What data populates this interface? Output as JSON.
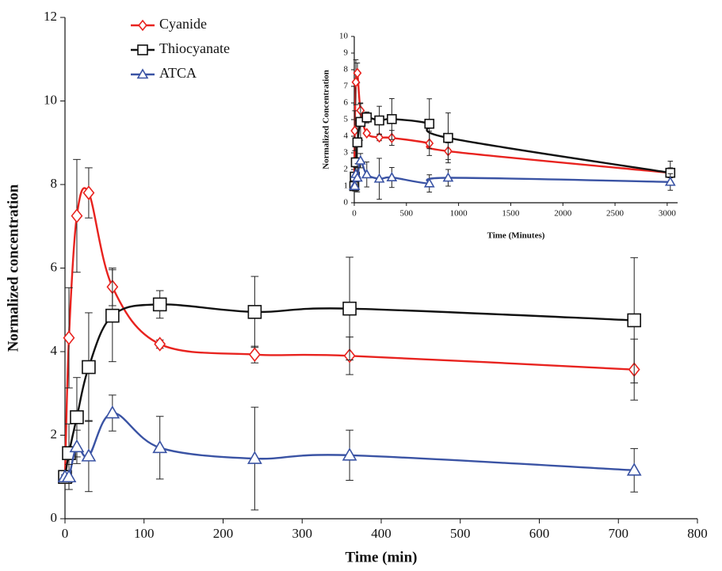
{
  "chart_data": [
    {
      "type": "line",
      "xlabel": "Time (min)",
      "ylabel": "Normalized concentration",
      "xlim": [
        0,
        800
      ],
      "xticks": [
        0,
        100,
        200,
        300,
        400,
        500,
        600,
        700,
        800
      ],
      "ylim": [
        0,
        12
      ],
      "yticks": [
        0,
        2,
        4,
        6,
        8,
        10,
        12
      ],
      "legend": "upper left",
      "x": [
        0,
        5,
        15,
        30,
        60,
        120,
        240,
        360,
        720
      ],
      "series": [
        {
          "name": "Cyanide",
          "color": "#e8231f",
          "marker": "diamond",
          "values": [
            1.0,
            4.33,
            7.25,
            7.8,
            5.55,
            4.18,
            3.93,
            3.9,
            3.57
          ],
          "errors": [
            0.05,
            1.2,
            1.35,
            0.6,
            0.45,
            0.1,
            0.2,
            0.45,
            0.73
          ]
        },
        {
          "name": "Thiocyanate",
          "color": "#111111",
          "marker": "square",
          "values": [
            1.0,
            1.57,
            2.43,
            3.63,
            4.86,
            5.13,
            4.95,
            5.03,
            4.75
          ],
          "errors": [
            0.05,
            0.7,
            0.95,
            1.3,
            1.1,
            0.33,
            0.85,
            1.23,
            1.5
          ]
        },
        {
          "name": "ATCA",
          "color": "#3a53a4",
          "marker": "triangle",
          "values": [
            1.0,
            1.0,
            1.72,
            1.5,
            2.53,
            1.7,
            1.44,
            1.52,
            1.16
          ],
          "errors": [
            0.05,
            0.3,
            0.4,
            0.85,
            0.43,
            0.75,
            1.23,
            0.6,
            0.52
          ]
        }
      ]
    },
    {
      "type": "line",
      "xlabel": "Time (Minutes)",
      "ylabel": "Normalized Concentration",
      "xlim": [
        0,
        3100
      ],
      "xticks": [
        0,
        500,
        1000,
        1500,
        2000,
        2500,
        3000
      ],
      "ylim": [
        0,
        10
      ],
      "yticks": [
        0,
        1,
        2,
        3,
        4,
        5,
        6,
        7,
        8,
        9,
        10
      ],
      "legend": false,
      "x": [
        0,
        5,
        15,
        30,
        60,
        120,
        240,
        360,
        720,
        900,
        3030
      ],
      "series": [
        {
          "name": "Cyanide",
          "color": "#e8231f",
          "marker": "diamond",
          "values": [
            1.0,
            4.33,
            7.25,
            7.8,
            5.55,
            4.18,
            3.93,
            3.9,
            3.57,
            3.1,
            1.8
          ],
          "errors": [
            0.05,
            1.2,
            1.35,
            0.6,
            0.45,
            0.1,
            0.2,
            0.45,
            0.73,
            0.5,
            0.3
          ]
        },
        {
          "name": "Thiocyanate",
          "color": "#111111",
          "marker": "square",
          "values": [
            1.0,
            1.57,
            2.43,
            3.63,
            4.86,
            5.13,
            4.95,
            5.03,
            4.75,
            3.9,
            1.8
          ],
          "errors": [
            0.05,
            0.7,
            0.95,
            1.3,
            1.1,
            0.33,
            0.85,
            1.23,
            1.5,
            1.5,
            0.7
          ]
        },
        {
          "name": "ATCA",
          "color": "#3a53a4",
          "marker": "triangle",
          "values": [
            1.0,
            1.0,
            1.72,
            1.5,
            2.53,
            1.7,
            1.44,
            1.52,
            1.16,
            1.5,
            1.25
          ],
          "errors": [
            0.05,
            0.3,
            0.4,
            0.85,
            0.43,
            0.75,
            1.23,
            0.6,
            0.52,
            0.5,
            0.5
          ]
        }
      ]
    }
  ]
}
